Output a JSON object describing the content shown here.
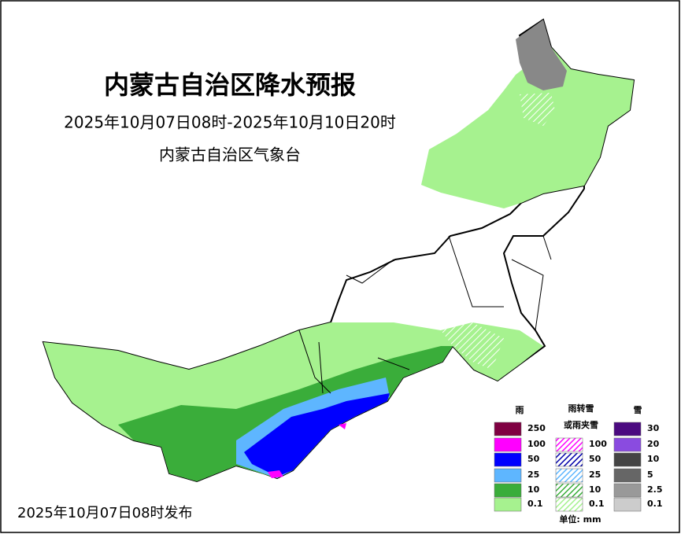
{
  "header": {
    "title": "内蒙古自治区降水预报",
    "period": "2025年10月07日08时-2025年10月10日20时",
    "issuer": "内蒙古自治区气象台"
  },
  "footer": {
    "issued": "2025年10月07日08时发布"
  },
  "legend": {
    "rain": {
      "title": "雨",
      "items": [
        {
          "value": 250,
          "color": "#7f0042"
        },
        {
          "value": 100,
          "color": "#ff00ff"
        },
        {
          "value": 50,
          "color": "#0000ff"
        },
        {
          "value": 25,
          "color": "#5eb6ff"
        },
        {
          "value": 10,
          "color": "#3aad3a"
        },
        {
          "value": 0.1,
          "color": "#a6f28f"
        }
      ]
    },
    "mixed": {
      "title": "雨转雪",
      "subtitle": "或雨夹雪",
      "items": [
        {
          "value": 100,
          "color": "#ff00ff"
        },
        {
          "value": 50,
          "color": "#0000aa"
        },
        {
          "value": 25,
          "color": "#5eb6ff"
        },
        {
          "value": 10,
          "color": "#3aad3a"
        },
        {
          "value": 0.1,
          "color": "#a6f28f"
        }
      ]
    },
    "snow": {
      "title": "雪",
      "items": [
        {
          "value": 30,
          "color": "#4b0a80"
        },
        {
          "value": 20,
          "color": "#8a4be0"
        },
        {
          "value": 10,
          "color": "#444444"
        },
        {
          "value": 5,
          "color": "#666666"
        },
        {
          "value": 2.5,
          "color": "#999999"
        },
        {
          "value": 0.1,
          "color": "#cccccc"
        }
      ]
    },
    "unit": "单位: mm"
  }
}
